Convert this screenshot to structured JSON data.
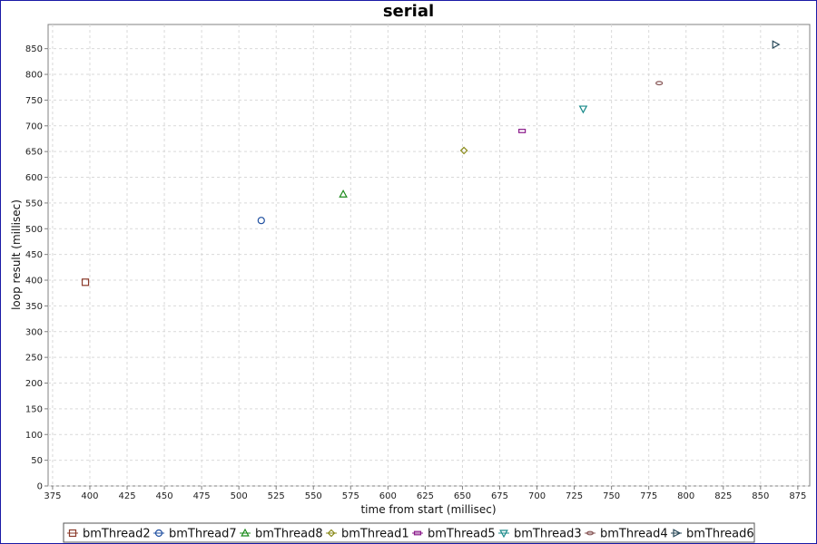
{
  "chart_data": {
    "type": "scatter",
    "title": "serial",
    "xlabel": "time from start (millisec)",
    "ylabel": "loop result (millisec)",
    "xlim": [
      372,
      883
    ],
    "ylim": [
      0,
      897
    ],
    "x_ticks": [
      375,
      400,
      425,
      450,
      475,
      500,
      525,
      550,
      575,
      600,
      625,
      650,
      675,
      700,
      725,
      750,
      775,
      800,
      825,
      850,
      875
    ],
    "y_ticks": [
      0,
      50,
      100,
      150,
      200,
      250,
      300,
      350,
      400,
      450,
      500,
      550,
      600,
      650,
      700,
      750,
      800,
      850
    ],
    "grid": true,
    "legend_position": "bottom",
    "series": [
      {
        "name": "bmThread2",
        "marker": "square",
        "color": "#8b3a2a",
        "points": [
          {
            "x": 397,
            "y": 396
          }
        ]
      },
      {
        "name": "bmThread7",
        "marker": "circle",
        "color": "#1f4fa0",
        "points": [
          {
            "x": 515,
            "y": 516
          }
        ]
      },
      {
        "name": "bmThread8",
        "marker": "triangle-up",
        "color": "#1a8a1a",
        "points": [
          {
            "x": 570,
            "y": 567
          }
        ]
      },
      {
        "name": "bmThread1",
        "marker": "diamond",
        "color": "#8a8a1a",
        "points": [
          {
            "x": 651,
            "y": 652
          }
        ]
      },
      {
        "name": "bmThread5",
        "marker": "rect-wide",
        "color": "#8a1a8a",
        "points": [
          {
            "x": 690,
            "y": 690
          }
        ]
      },
      {
        "name": "bmThread3",
        "marker": "triangle-down",
        "color": "#1a8a8a",
        "points": [
          {
            "x": 731,
            "y": 733
          }
        ]
      },
      {
        "name": "bmThread4",
        "marker": "ellipse",
        "color": "#8a5a5a",
        "points": [
          {
            "x": 782,
            "y": 783
          }
        ]
      },
      {
        "name": "bmThread6",
        "marker": "triangle-right",
        "color": "#2a4a5a",
        "points": [
          {
            "x": 860,
            "y": 858
          }
        ]
      }
    ]
  }
}
